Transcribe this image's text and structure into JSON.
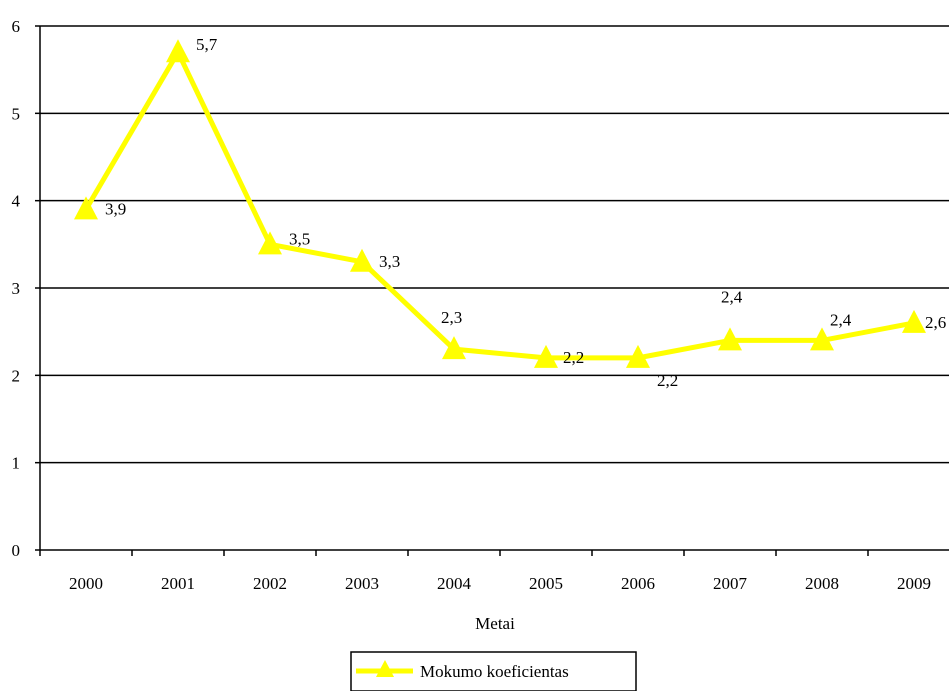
{
  "chart_data": {
    "type": "line",
    "title": "",
    "xlabel": "Metai",
    "ylabel": "",
    "categories": [
      "2000",
      "2001",
      "2002",
      "2003",
      "2004",
      "2005",
      "2006",
      "2007",
      "2008",
      "2009"
    ],
    "ylim": [
      0,
      6
    ],
    "yticks": [
      "0",
      "1",
      "2",
      "3",
      "4",
      "5",
      "6"
    ],
    "grid": true,
    "legend_position": "bottom",
    "series": [
      {
        "name": "Mokumo koeficientas",
        "values": [
          3.9,
          5.7,
          3.5,
          3.3,
          2.3,
          2.2,
          2.2,
          2.4,
          2.4,
          2.6
        ],
        "labels": [
          "3,9",
          "5,7",
          "3,5",
          "3,3",
          "2,3",
          "2,2",
          "2,2",
          "2,4",
          "2,4",
          "2,6"
        ],
        "color": "#ffff00",
        "marker": "triangle"
      }
    ]
  }
}
